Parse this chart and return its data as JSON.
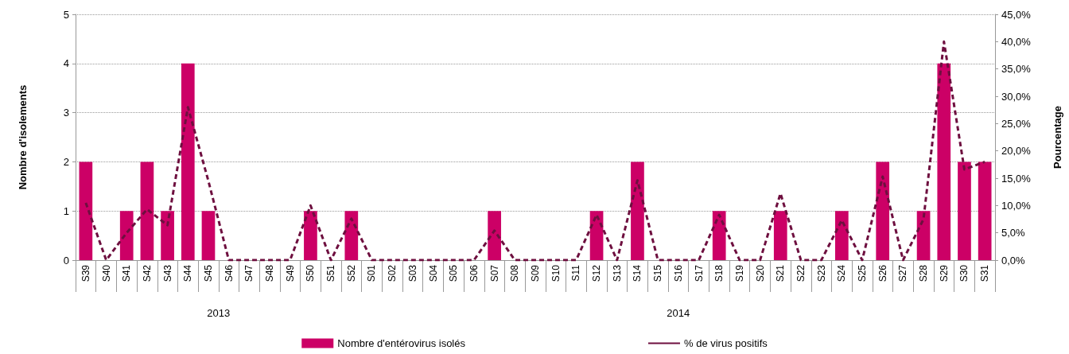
{
  "chart_data": {
    "type": "bar",
    "categories": [
      "S39",
      "S40",
      "S41",
      "S42",
      "S43",
      "S44",
      "S45",
      "S46",
      "S47",
      "S48",
      "S49",
      "S50",
      "S51",
      "S52",
      "S01",
      "S02",
      "S03",
      "S04",
      "S05",
      "S06",
      "S07",
      "S08",
      "S09",
      "S10",
      "S11",
      "S12",
      "S13",
      "S14",
      "S15",
      "S16",
      "S17",
      "S18",
      "S19",
      "S20",
      "S21",
      "S22",
      "S23",
      "S24",
      "S25",
      "S26",
      "S27",
      "S28",
      "S29",
      "S30",
      "S31"
    ],
    "ylabel": "Nombre d'isolements",
    "y2label": "Pourcentage",
    "series": [
      {
        "name": "Nombre d'entérovirus isolés",
        "color": "#cc0066",
        "values": [
          2,
          0,
          1,
          2,
          1,
          4,
          1,
          0,
          0,
          0,
          0,
          1,
          0,
          1,
          0,
          0,
          0,
          0,
          0,
          0,
          1,
          0,
          0,
          0,
          0,
          1,
          0,
          2,
          0,
          0,
          0,
          1,
          0,
          0,
          1,
          0,
          0,
          1,
          0,
          2,
          0,
          1,
          4,
          2,
          2
        ]
      },
      {
        "name": "% de virus positifs",
        "type": "line",
        "axis": "y2",
        "color": "#6e0f3f",
        "line_style": "dashed",
        "marker": "none",
        "values": [
          10.5,
          0,
          5,
          9.3,
          6.4,
          28,
          14.5,
          0,
          0,
          0,
          0,
          10,
          0,
          7.6,
          0,
          0,
          0,
          0,
          0,
          0,
          5.4,
          0,
          0,
          0,
          0,
          8.3,
          0,
          14.6,
          0,
          0,
          0,
          8.3,
          0,
          0,
          12.2,
          0,
          0,
          7.3,
          0,
          15.3,
          0,
          7.5,
          40,
          16.6,
          18
        ]
      }
    ],
    "ylim": [
      0,
      5
    ],
    "yticks": [
      0,
      1,
      2,
      3,
      4,
      5
    ],
    "y2lim": [
      0,
      45
    ],
    "y2ticks": [
      {
        "value": 0,
        "label": "0,0%"
      },
      {
        "value": 5,
        "label": "5,0%"
      },
      {
        "value": 10,
        "label": "10,0%"
      },
      {
        "value": 15,
        "label": "15,0%"
      },
      {
        "value": 20,
        "label": "20,0%"
      },
      {
        "value": 25,
        "label": "25,0%"
      },
      {
        "value": 30,
        "label": "30,0%"
      },
      {
        "value": 35,
        "label": "35,0%"
      },
      {
        "value": 40,
        "label": "40,0%"
      },
      {
        "value": 45,
        "label": "45,0%"
      }
    ],
    "annotations": [
      "2013",
      "2014"
    ],
    "grid": "y",
    "legend": "bottom"
  }
}
